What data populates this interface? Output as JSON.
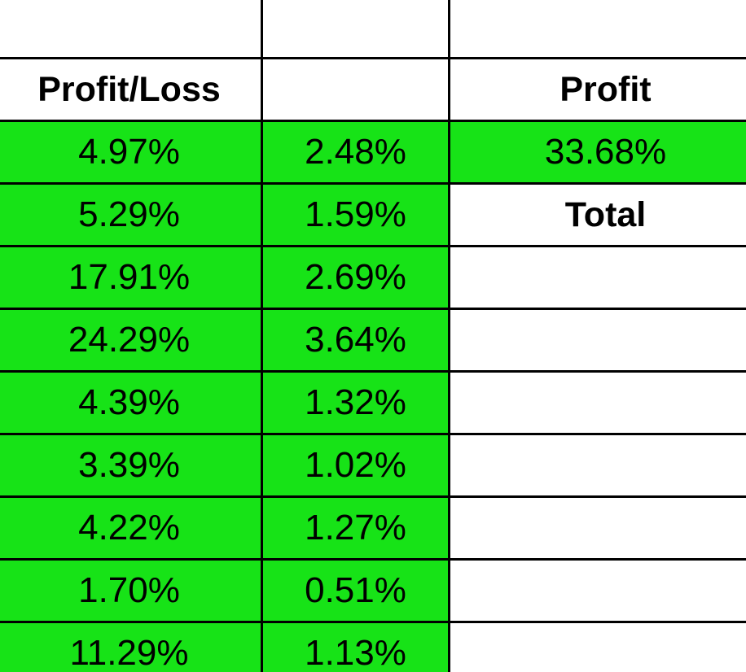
{
  "colors": {
    "highlight_green": "#17e317",
    "grid_line": "#000000",
    "background": "#ffffff"
  },
  "headers": {
    "col_a": "Profit/Loss",
    "col_b": "",
    "col_c": "Profit"
  },
  "summary": {
    "profit_value": "33.68%",
    "total_label": "Total"
  },
  "rows": [
    {
      "a": "4.97%",
      "b": "2.48%"
    },
    {
      "a": "5.29%",
      "b": "1.59%"
    },
    {
      "a": "17.91%",
      "b": "2.69%"
    },
    {
      "a": "24.29%",
      "b": "3.64%"
    },
    {
      "a": "4.39%",
      "b": "1.32%"
    },
    {
      "a": "3.39%",
      "b": "1.02%"
    },
    {
      "a": "4.22%",
      "b": "1.27%"
    },
    {
      "a": "1.70%",
      "b": "0.51%"
    },
    {
      "a": "11.29%",
      "b": "1.13%"
    }
  ]
}
